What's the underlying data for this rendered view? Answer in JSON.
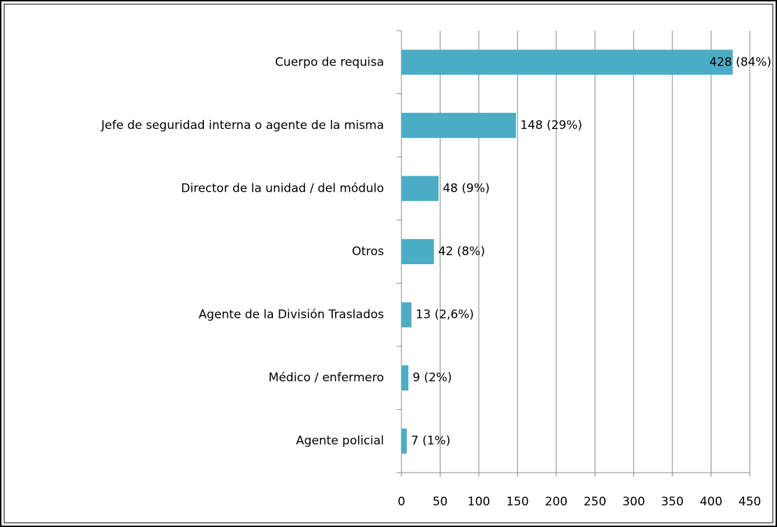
{
  "chart_data": {
    "type": "hbar",
    "categories": [
      "Cuerpo de requisa",
      "Jefe de seguridad interna o agente de la misma",
      "Director de la unidad / del módulo",
      "Otros",
      "Agente de la División Traslados",
      "Médico / enfermero",
      "Agente policial"
    ],
    "values": [
      428,
      148,
      48,
      42,
      13,
      9,
      7
    ],
    "value_labels": [
      "428 (84%)",
      "148 (29%)",
      "48 (9%)",
      "42 (8%)",
      "13 (2,6%)",
      "9 (2%)",
      "7 (1%)"
    ],
    "color": "#4bacc6",
    "xlim": [
      0,
      450
    ],
    "xticks": [
      0,
      50,
      100,
      150,
      200,
      250,
      300,
      350,
      400,
      450
    ],
    "grid": true
  }
}
